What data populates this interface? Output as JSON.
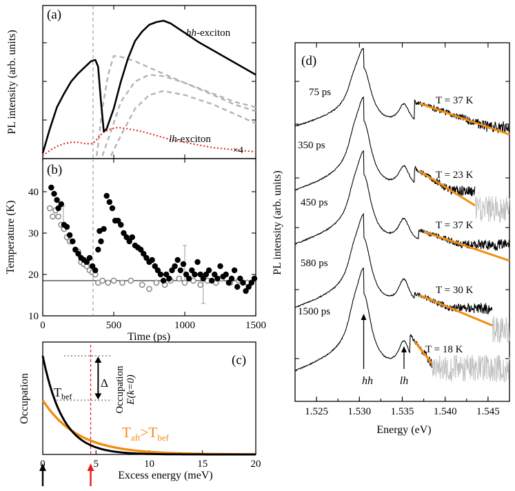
{
  "chart_data": [
    {
      "panel": "a",
      "panel_label": "(a)",
      "type": "line",
      "ylabel": "PL intensity (arb. units)",
      "x_range_ps": [
        0,
        1500
      ],
      "dashed_marker_x_ps": 380,
      "annotations": {
        "hh_prefix": "hh",
        "hh_suffix": "-exciton",
        "lh_prefix": "lh",
        "lh_suffix": "-exciton",
        "scale": "×4"
      },
      "colors": {
        "hh": "#000000",
        "lh": "#e41a1c",
        "guide": "#b3b3b3"
      },
      "series": [
        {
          "name": "hh-exciton",
          "style": "solid",
          "points": [
            [
              0,
              0.02
            ],
            [
              50,
              0.2
            ],
            [
              100,
              0.36
            ],
            [
              150,
              0.46
            ],
            [
              200,
              0.55
            ],
            [
              250,
              0.61
            ],
            [
              300,
              0.66
            ],
            [
              340,
              0.7
            ],
            [
              370,
              0.71
            ],
            [
              390,
              0.66
            ],
            [
              410,
              0.4
            ],
            [
              430,
              0.18
            ],
            [
              450,
              0.2
            ],
            [
              500,
              0.35
            ],
            [
              550,
              0.55
            ],
            [
              600,
              0.72
            ],
            [
              650,
              0.85
            ],
            [
              700,
              0.92
            ],
            [
              750,
              0.97
            ],
            [
              800,
              0.99
            ],
            [
              850,
              1.0
            ],
            [
              900,
              0.98
            ],
            [
              1000,
              0.91
            ],
            [
              1100,
              0.84
            ],
            [
              1200,
              0.78
            ],
            [
              1300,
              0.72
            ],
            [
              1400,
              0.66
            ],
            [
              1500,
              0.6
            ]
          ]
        },
        {
          "name": "lh-exciton (×4)",
          "style": "dotted",
          "points": [
            [
              0,
              0.0
            ],
            [
              50,
              0.04
            ],
            [
              100,
              0.07
            ],
            [
              150,
              0.09
            ],
            [
              200,
              0.1
            ],
            [
              250,
              0.1
            ],
            [
              300,
              0.09
            ],
            [
              350,
              0.09
            ],
            [
              380,
              0.12
            ],
            [
              420,
              0.17
            ],
            [
              480,
              0.2
            ],
            [
              530,
              0.21
            ],
            [
              600,
              0.2
            ],
            [
              700,
              0.18
            ],
            [
              800,
              0.15
            ],
            [
              900,
              0.12
            ],
            [
              1000,
              0.1
            ],
            [
              1100,
              0.08
            ],
            [
              1200,
              0.06
            ],
            [
              1300,
              0.05
            ],
            [
              1400,
              0.04
            ],
            [
              1500,
              0.03
            ]
          ]
        },
        {
          "name": "guide-1",
          "style": "dashed",
          "points": [
            [
              380,
              0.0
            ],
            [
              420,
              0.35
            ],
            [
              460,
              0.6
            ],
            [
              500,
              0.74
            ],
            [
              560,
              0.73
            ],
            [
              650,
              0.7
            ],
            [
              800,
              0.63
            ],
            [
              1000,
              0.54
            ],
            [
              1200,
              0.46
            ],
            [
              1350,
              0.4
            ],
            [
              1500,
              0.36
            ]
          ]
        },
        {
          "name": "guide-2",
          "style": "dashed",
          "points": [
            [
              420,
              0.0
            ],
            [
              480,
              0.18
            ],
            [
              550,
              0.4
            ],
            [
              650,
              0.55
            ],
            [
              750,
              0.6
            ],
            [
              850,
              0.59
            ],
            [
              1000,
              0.54
            ],
            [
              1200,
              0.45
            ],
            [
              1350,
              0.38
            ],
            [
              1500,
              0.33
            ]
          ]
        },
        {
          "name": "guide-3",
          "style": "dashed",
          "points": [
            [
              480,
              0.0
            ],
            [
              550,
              0.15
            ],
            [
              650,
              0.35
            ],
            [
              750,
              0.45
            ],
            [
              850,
              0.48
            ],
            [
              1000,
              0.45
            ],
            [
              1200,
              0.38
            ],
            [
              1350,
              0.31
            ],
            [
              1500,
              0.24
            ]
          ]
        }
      ]
    },
    {
      "panel": "b",
      "panel_label": "(b)",
      "type": "scatter",
      "xlabel": "Time (ps)",
      "ylabel": "Temperature (K)",
      "xlim": [
        0,
        1500
      ],
      "ylim": [
        10,
        48
      ],
      "xticks": [
        0,
        500,
        1000,
        1500
      ],
      "yticks": [
        10,
        20,
        30,
        40
      ],
      "reference_line_K": 18.5,
      "dashed_marker_x_ps": 380,
      "series": [
        {
          "name": "filled",
          "marker": "filled-circle",
          "points": [
            [
              60,
              41
            ],
            [
              80,
              39.5
            ],
            [
              100,
              38
            ],
            [
              110,
              36
            ],
            [
              130,
              37
            ],
            [
              150,
              32
            ],
            [
              170,
              31.5
            ],
            [
              190,
              29.5
            ],
            [
              210,
              28
            ],
            [
              230,
              26
            ],
            [
              250,
              25
            ],
            [
              270,
              24
            ],
            [
              290,
              23.5
            ],
            [
              310,
              23
            ],
            [
              330,
              24
            ],
            [
              350,
              22
            ],
            [
              370,
              21
            ],
            [
              390,
              26
            ],
            [
              400,
              30.5
            ],
            [
              410,
              28
            ],
            [
              430,
              31
            ],
            [
              450,
              39
            ],
            [
              470,
              37.5
            ],
            [
              490,
              36
            ],
            [
              510,
              33
            ],
            [
              530,
              33
            ],
            [
              550,
              32
            ],
            [
              570,
              30
            ],
            [
              590,
              29
            ],
            [
              610,
              28
            ],
            [
              630,
              29
            ],
            [
              650,
              27
            ],
            [
              670,
              26.5
            ],
            [
              690,
              26
            ],
            [
              710,
              25
            ],
            [
              730,
              24
            ],
            [
              750,
              23
            ],
            [
              770,
              23.5
            ],
            [
              790,
              22
            ],
            [
              810,
              21
            ],
            [
              830,
              20
            ],
            [
              850,
              18.5
            ],
            [
              870,
              20
            ],
            [
              890,
              19
            ],
            [
              910,
              21
            ],
            [
              930,
              22
            ],
            [
              950,
              23.5
            ],
            [
              970,
              21
            ],
            [
              990,
              22.5
            ],
            [
              1010,
              20
            ],
            [
              1030,
              19
            ],
            [
              1050,
              21
            ],
            [
              1070,
              20
            ],
            [
              1090,
              23
            ],
            [
              1110,
              20
            ],
            [
              1130,
              19
            ],
            [
              1150,
              20
            ],
            [
              1170,
              21
            ],
            [
              1190,
              18.5
            ],
            [
              1210,
              20
            ],
            [
              1230,
              19
            ],
            [
              1250,
              22
            ],
            [
              1270,
              19.5
            ],
            [
              1290,
              20
            ],
            [
              1310,
              18
            ],
            [
              1330,
              19
            ],
            [
              1350,
              21
            ],
            [
              1370,
              17
            ],
            [
              1390,
              19
            ],
            [
              1410,
              18
            ],
            [
              1430,
              16
            ],
            [
              1450,
              17
            ],
            [
              1470,
              18
            ],
            [
              1490,
              19
            ]
          ]
        },
        {
          "name": "open",
          "marker": "open-circle",
          "points": [
            [
              50,
              36
            ],
            [
              70,
              34
            ],
            [
              90,
              35.5
            ],
            [
              110,
              34
            ],
            [
              130,
              32
            ],
            [
              150,
              31
            ],
            [
              170,
              29
            ],
            [
              190,
              28
            ],
            [
              210,
              28
            ],
            [
              230,
              26
            ],
            [
              250,
              25.5
            ],
            [
              270,
              23
            ],
            [
              290,
              22.5
            ],
            [
              310,
              22
            ],
            [
              330,
              21
            ],
            [
              350,
              20.5
            ],
            [
              370,
              20
            ],
            [
              390,
              18
            ],
            [
              420,
              18.5
            ],
            [
              460,
              18
            ],
            [
              500,
              18.5
            ],
            [
              560,
              18
            ],
            [
              620,
              18.5
            ],
            [
              700,
              17.5
            ],
            [
              750,
              16.5
            ],
            [
              800,
              18
            ],
            [
              860,
              17.5
            ],
            [
              900,
              18.5
            ],
            [
              960,
              19
            ],
            [
              1000,
              18
            ],
            [
              1060,
              18.5
            ],
            [
              1110,
              17.5
            ],
            [
              1160,
              18.5
            ],
            [
              1220,
              18
            ],
            [
              1260,
              19
            ],
            [
              1320,
              18
            ],
            [
              1380,
              18.5
            ],
            [
              1440,
              18
            ]
          ]
        }
      ],
      "error_bars": [
        [
          145,
          34.5,
          2
        ],
        [
          1130,
          16.5,
          3.5
        ],
        [
          1000,
          22.5,
          4.5
        ]
      ]
    },
    {
      "panel": "c",
      "panel_label": "(c)",
      "type": "line",
      "xlabel": "Excess energy (meV)",
      "ylabel": "Occupation",
      "xlim": [
        0,
        20
      ],
      "xticks": [
        0,
        5,
        10,
        15,
        20
      ],
      "marker_x_meV": 4.5,
      "colors": {
        "before": "#000000",
        "after": "#f28c0f",
        "marker": "#e41a1c",
        "arrow0": "#000000",
        "arrow1": "#e41a1c"
      },
      "series": [
        {
          "name": "T_bef",
          "func": "exp",
          "amplitude": 1.0,
          "decay_meV": 1.9
        },
        {
          "name": "T_aft",
          "func": "exp",
          "amplitude": 0.55,
          "decay_meV": 3.3
        }
      ],
      "labels": {
        "tbef": "T",
        "tbef_sub": "bef",
        "taft": "T",
        "taft_sub": "aft",
        "taft_rel": ">T",
        "taft_rel_sub": "bef",
        "delta": "Δ",
        "occ_rot": "Occupation",
        "occ_rot_sub": "E(k=0)"
      }
    },
    {
      "panel": "d",
      "panel_label": "(d)",
      "type": "line",
      "xlabel": "Energy (eV)",
      "ylabel": "PL intensity (arb. units)",
      "xlim": [
        1.5225,
        1.5475
      ],
      "xticks": [
        1.525,
        1.53,
        1.535,
        1.54,
        1.545
      ],
      "xtick_labels": [
        "1.525",
        "1.530",
        "1.535",
        "1.540",
        "1.545"
      ],
      "peaks": {
        "hh_eV": 1.5305,
        "lh_eV": 1.5352
      },
      "peak_labels": {
        "hh": "hh",
        "lh": "lh"
      },
      "colors": {
        "spectrum": "#000000",
        "fit": "#f28c0f",
        "noise": "#c0c0c0"
      },
      "spectra": [
        {
          "time": "75 ps",
          "fit_label": "T = 37 K",
          "temperature_K": 37
        },
        {
          "time": "350 ps",
          "fit_label": "T = 23 K",
          "temperature_K": 23
        },
        {
          "time": "450 ps",
          "fit_label": "T = 37 K",
          "temperature_K": 37
        },
        {
          "time": "580 ps",
          "fit_label": "T = 30 K",
          "temperature_K": 30
        },
        {
          "time": "1500 ps",
          "fit_label": "T = 18 K",
          "temperature_K": 18
        }
      ]
    }
  ]
}
